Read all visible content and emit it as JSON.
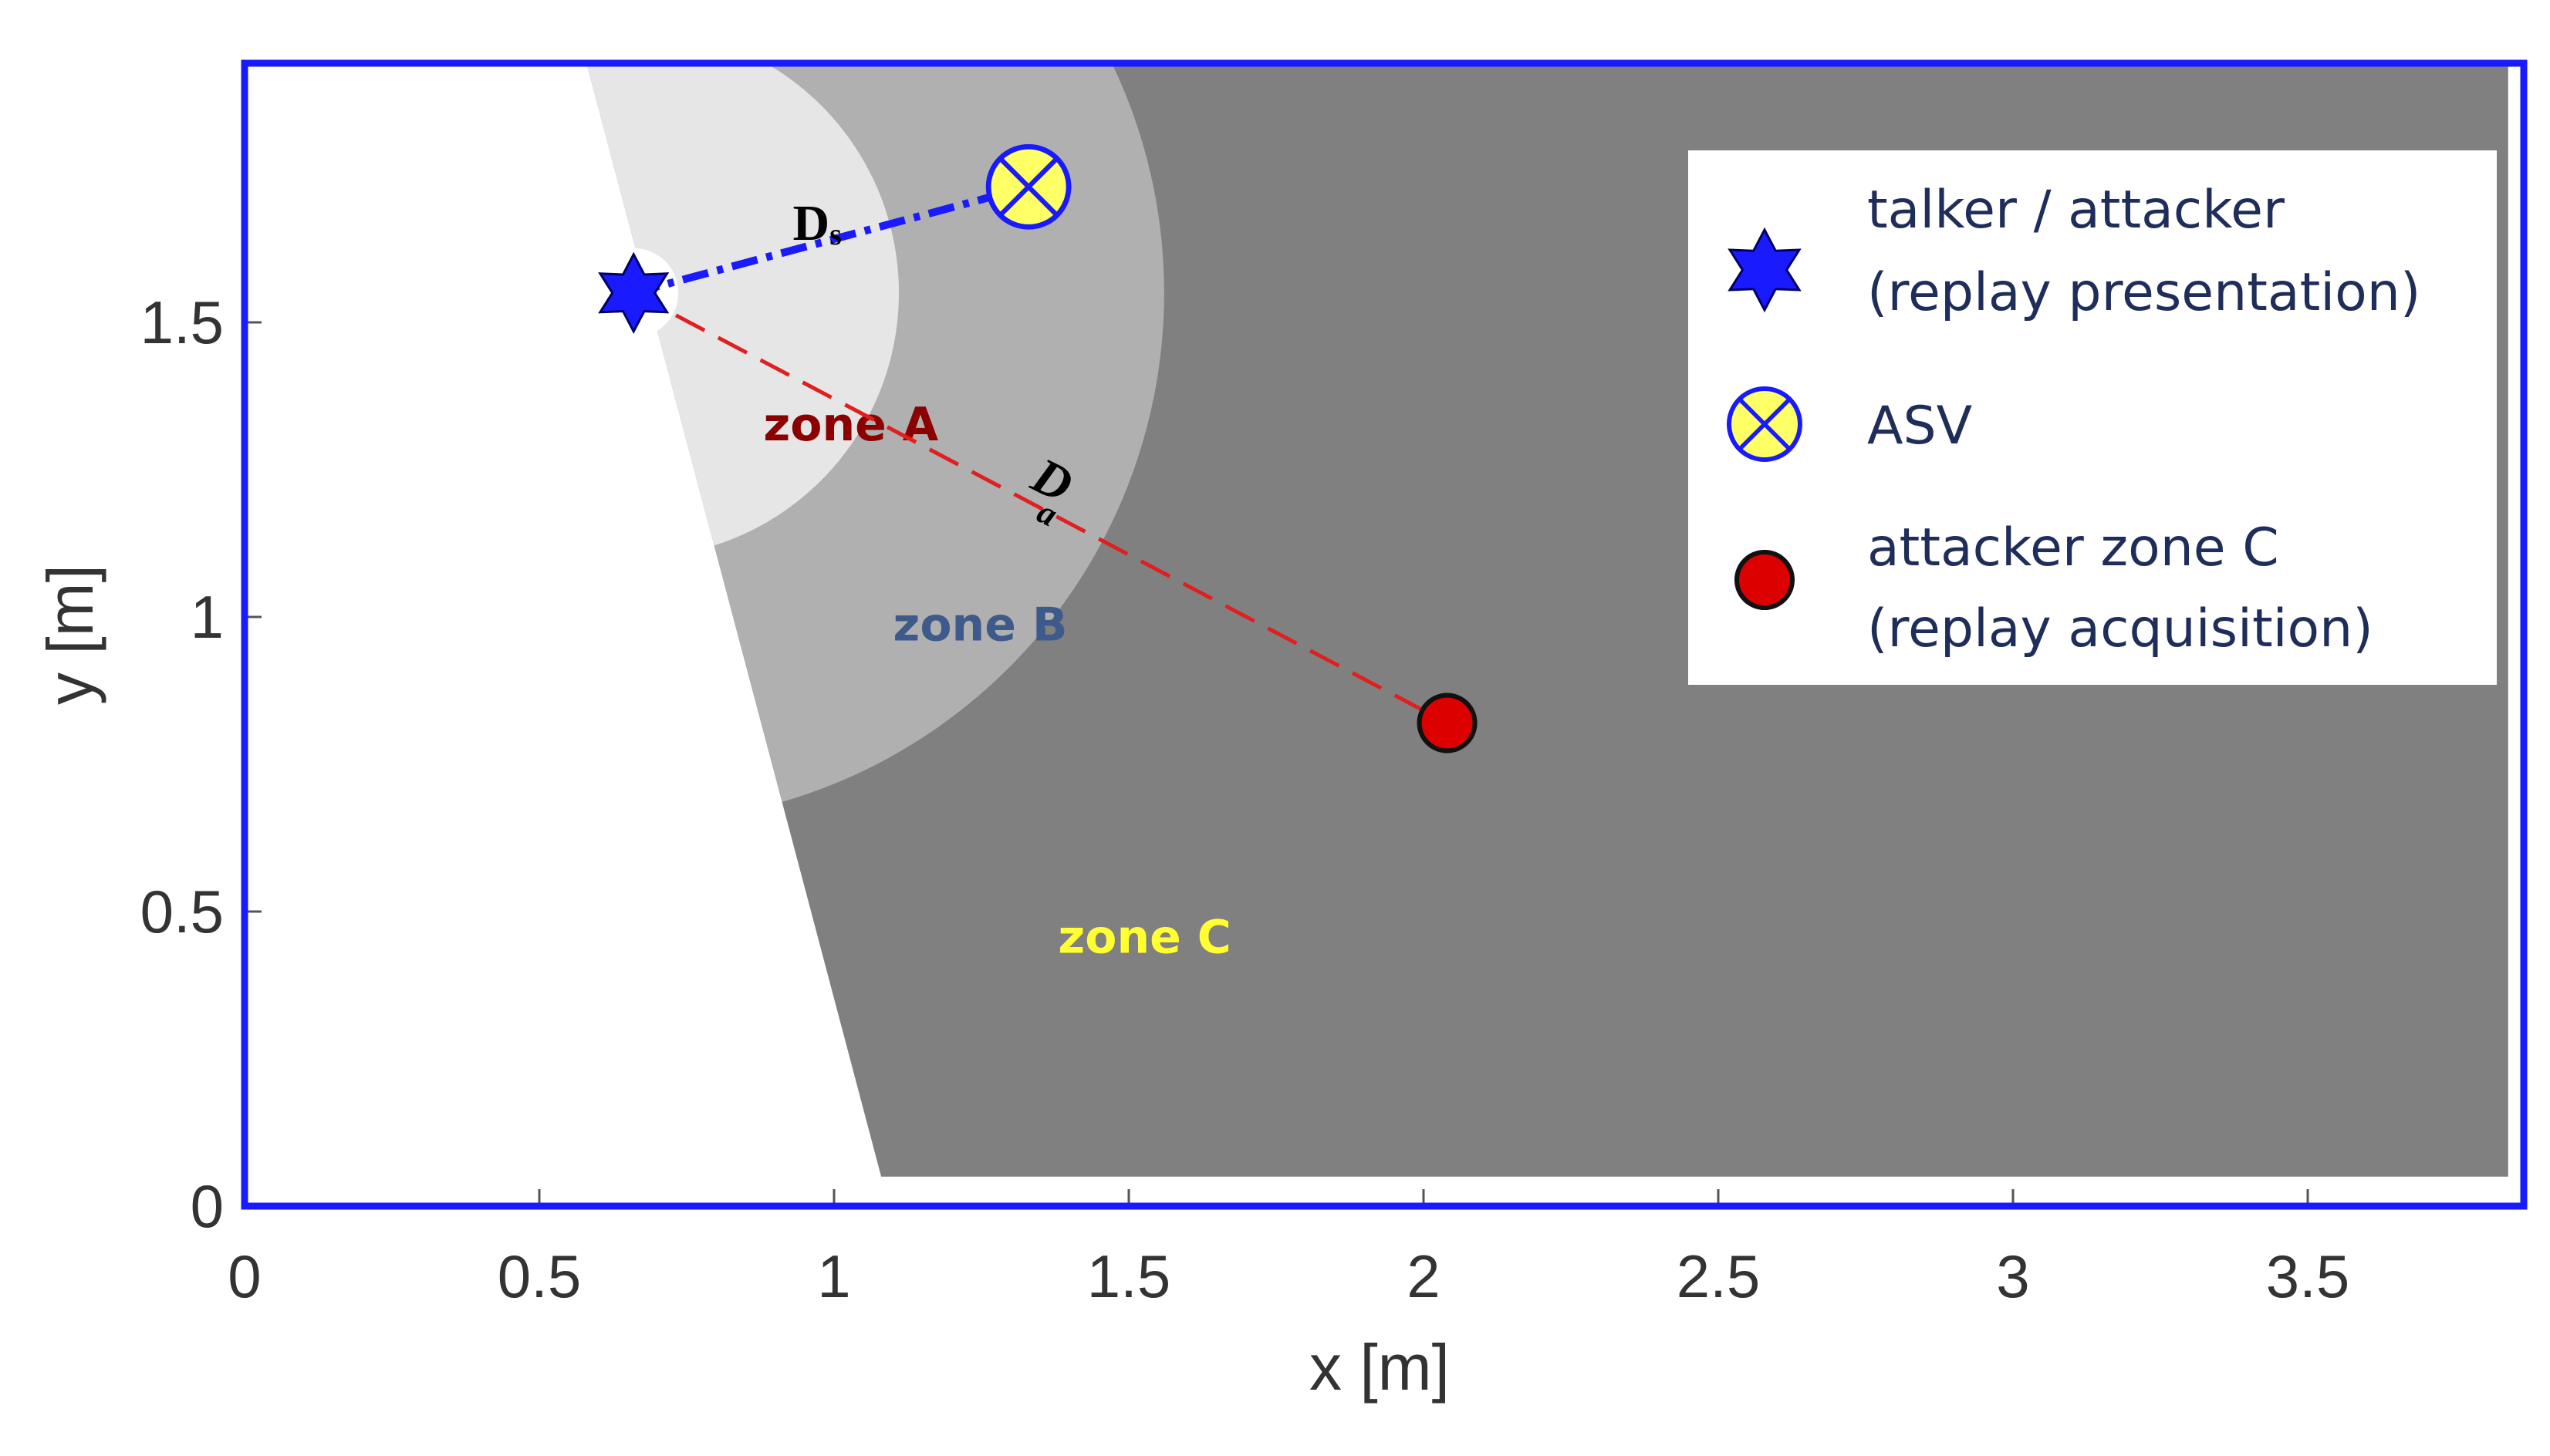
{
  "chart_data": {
    "type": "scatter",
    "xlabel": "x [m]",
    "ylabel": "y [m]",
    "xlim": [
      0,
      3.85
    ],
    "ylim": [
      0,
      1.94
    ],
    "xticks": [
      0,
      0.5,
      1,
      1.5,
      2,
      2.5,
      3,
      3.5
    ],
    "yticks": [
      0,
      0.5,
      1,
      1.5
    ],
    "xtick_labels": [
      "0",
      "0.5",
      "1",
      "1.5",
      "2",
      "2.5",
      "3",
      "3.5"
    ],
    "ytick_labels": [
      "0",
      "0.5",
      "1",
      "1.5"
    ],
    "grid": false,
    "legend_position": "top-right",
    "points": {
      "talker": {
        "x": 0.66,
        "y": 1.55
      },
      "asv": {
        "x": 1.33,
        "y": 1.73
      },
      "attacker_c": {
        "x": 2.04,
        "y": 0.82
      }
    },
    "zones": [
      {
        "name": "zone A",
        "label": "zone A",
        "label_color": "#8b0000",
        "fill": "#e6e6e6",
        "label_at": {
          "x": 0.88,
          "y": 1.3
        }
      },
      {
        "name": "zone B",
        "label": "zone B",
        "label_color": "#3d5a8a",
        "fill": "#b0b0b0",
        "label_at": {
          "x": 1.1,
          "y": 0.96
        }
      },
      {
        "name": "zone C",
        "label": "zone C",
        "label_color": "#ffff33",
        "fill": "#808080",
        "label_at": {
          "x": 1.38,
          "y": 0.43
        }
      }
    ],
    "zone_a_radius": 0.45,
    "zone_b_radius": 0.9,
    "distances": [
      {
        "name": "Ds",
        "main": "D",
        "sub": "s",
        "from": "talker",
        "to": "asv",
        "color": "#1a1aff",
        "style": "dashdot"
      },
      {
        "name": "Da",
        "main": "D",
        "sub": "a",
        "from": "talker",
        "to": "attacker_c",
        "color": "#e02020",
        "style": "dashed"
      }
    ],
    "legend": [
      {
        "marker": "star",
        "lines": [
          "talker / attacker",
          "(replay presentation)"
        ]
      },
      {
        "marker": "asv",
        "lines": [
          "ASV"
        ]
      },
      {
        "marker": "dot",
        "lines": [
          "attacker zone  C",
          "(replay acquisition)"
        ]
      }
    ]
  },
  "colors": {
    "frame": "#1a1aff",
    "star": "#1a1aff",
    "asv_fill": "#ffff66",
    "asv_stroke": "#1a1aff",
    "dot": "#dd0000"
  }
}
